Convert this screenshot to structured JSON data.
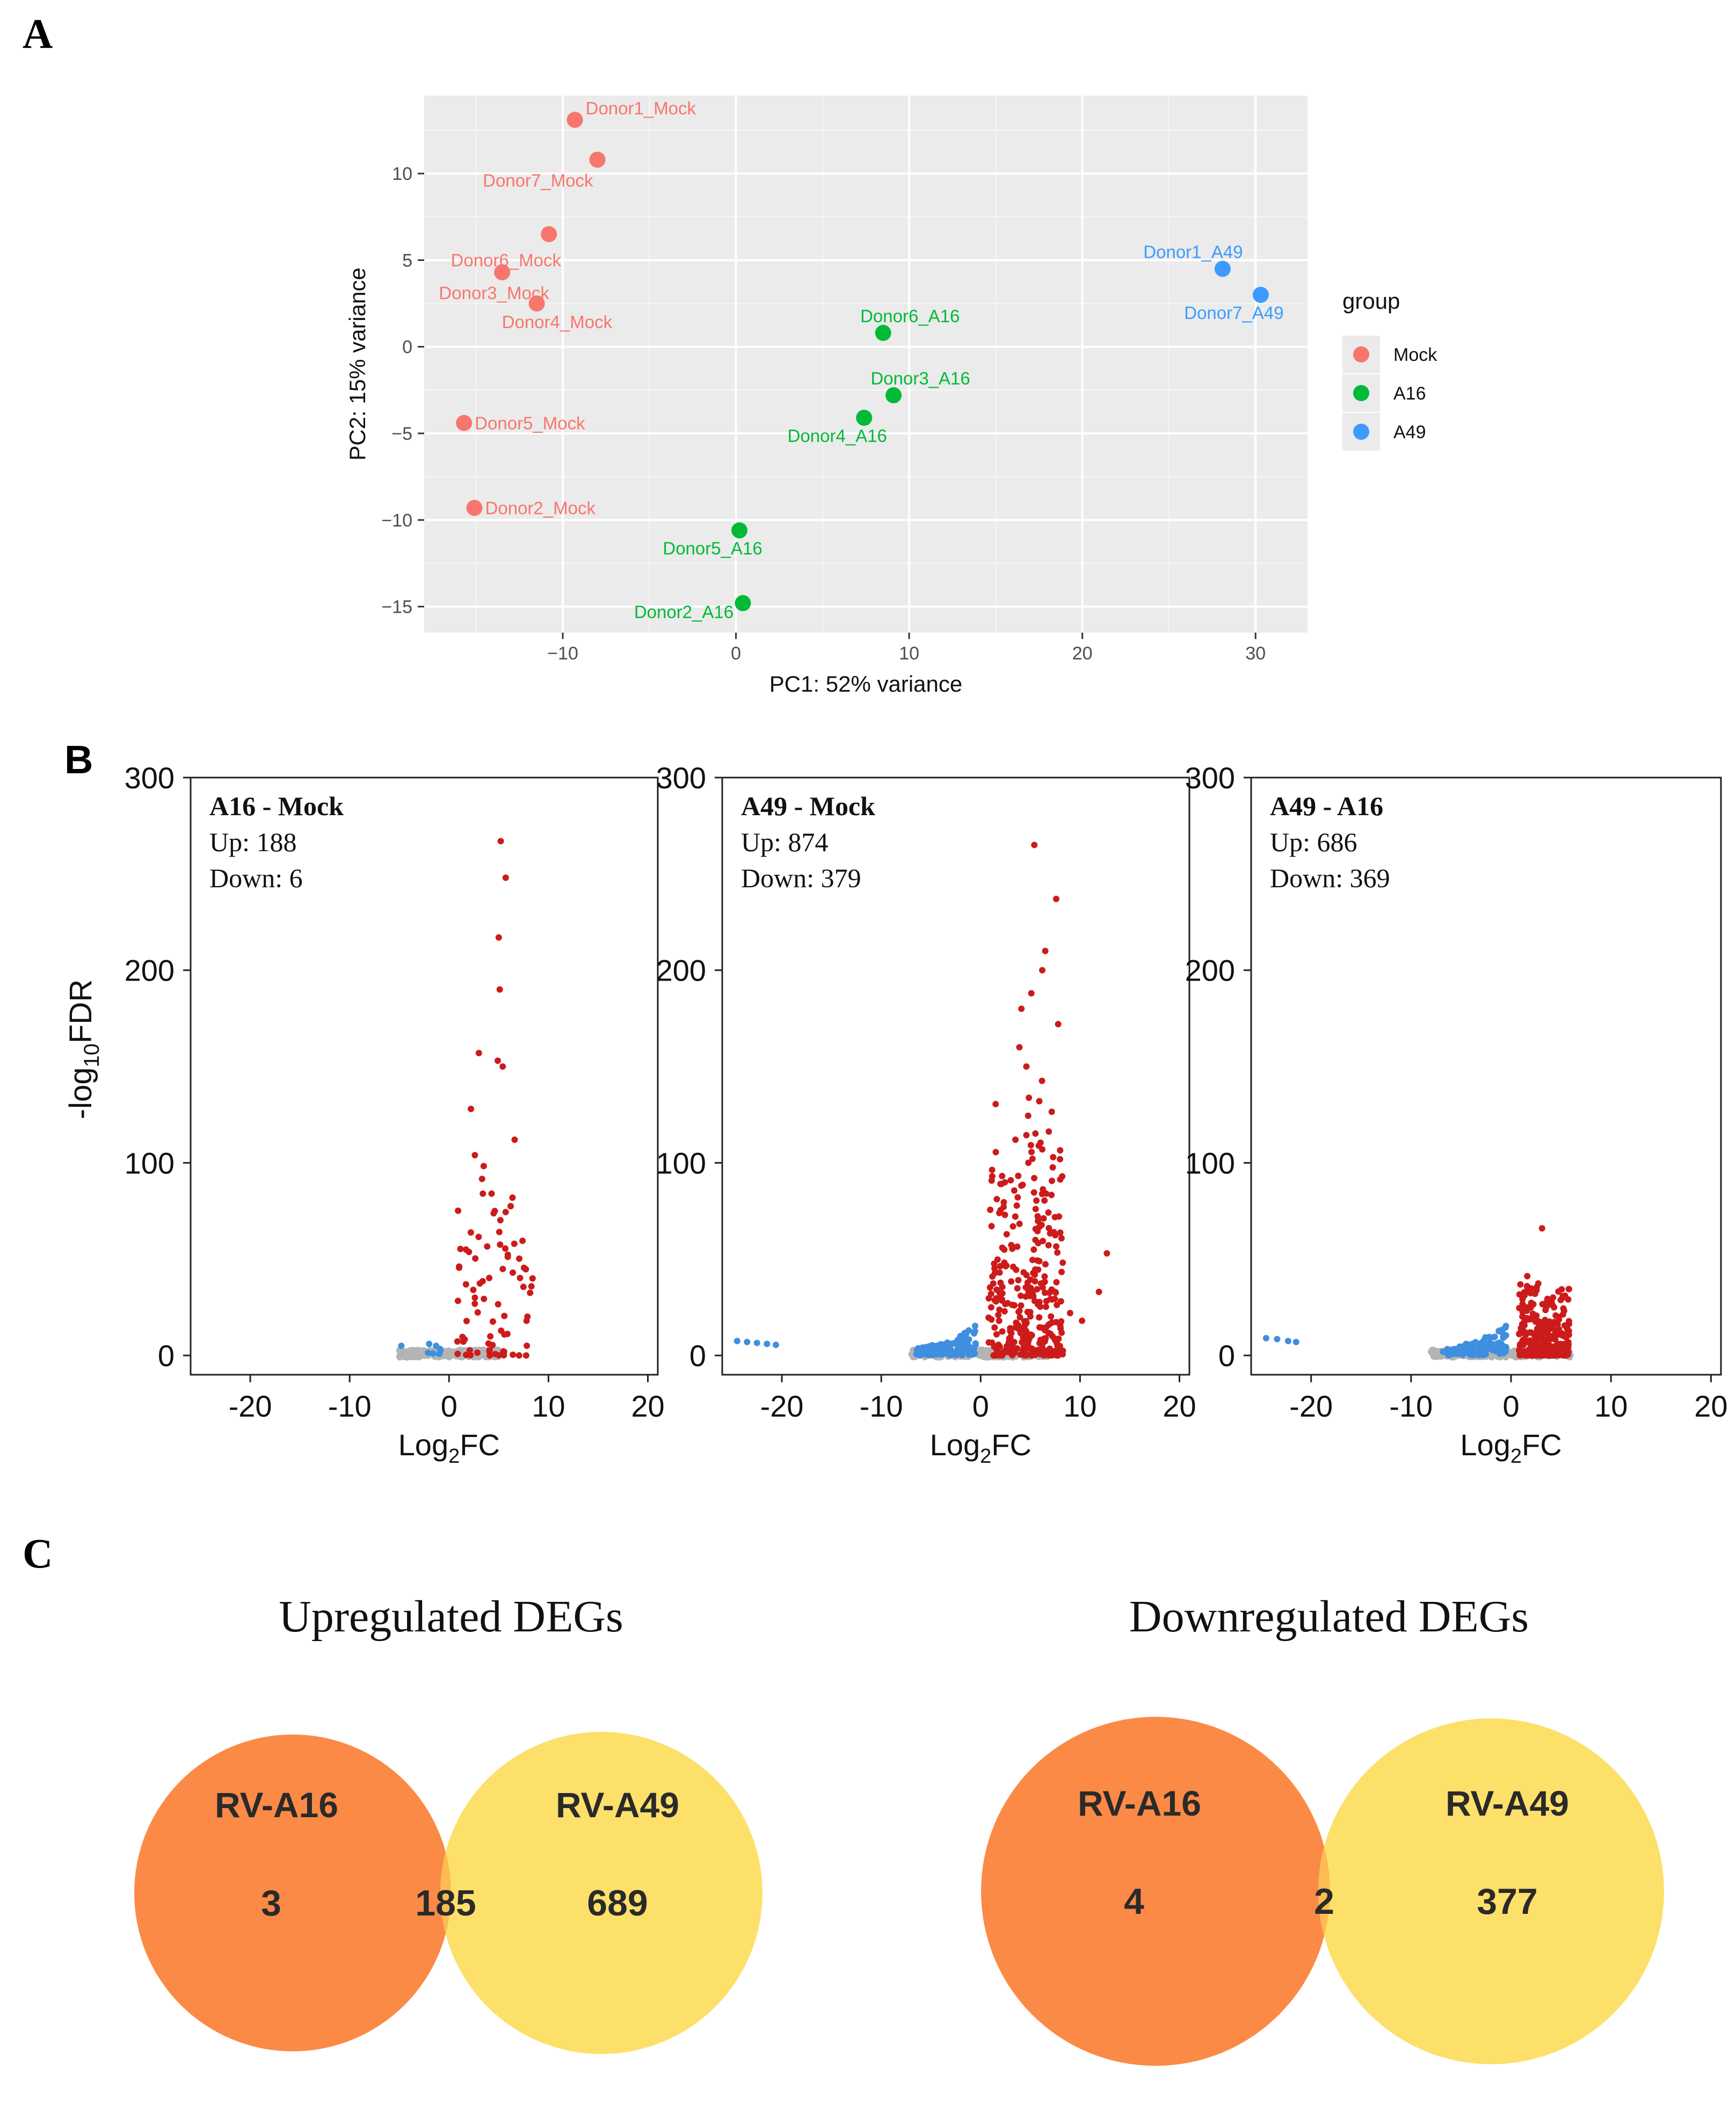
{
  "panels": {
    "a": "A",
    "b": "B",
    "c": "C"
  },
  "chart_data": [
    {
      "type": "scatter",
      "panel": "A",
      "xlabel": "PC1: 52% variance",
      "ylabel": "PC2: 15% variance",
      "xlim": [
        -18,
        33
      ],
      "ylim": [
        -16.5,
        14.5
      ],
      "xticks": [
        -10,
        0,
        10,
        20,
        30
      ],
      "xtick_labels": [
        "−10",
        "0",
        "10",
        "20",
        "30"
      ],
      "yticks": [
        10,
        5,
        0,
        -5,
        -10,
        -15
      ],
      "ytick_labels": [
        "10",
        "5",
        "0",
        "−5",
        "−10",
        "−15"
      ],
      "background": "#ebebeb",
      "legend": {
        "title": "group",
        "position": "right",
        "items": [
          {
            "label": "Mock",
            "color": "#f8766d"
          },
          {
            "label": "A16",
            "color": "#00ba38"
          },
          {
            "label": "A49",
            "color": "#3d9bff"
          }
        ]
      },
      "points": [
        {
          "label": "Donor1_Mock",
          "group": "Mock",
          "x": -9.3,
          "y": 13.1
        },
        {
          "label": "Donor7_Mock",
          "group": "Mock",
          "x": -8.0,
          "y": 10.8
        },
        {
          "label": "Donor6_Mock",
          "group": "Mock",
          "x": -10.8,
          "y": 6.5
        },
        {
          "label": "Donor3_Mock",
          "group": "Mock",
          "x": -13.5,
          "y": 4.3
        },
        {
          "label": "Donor4_Mock",
          "group": "Mock",
          "x": -11.5,
          "y": 2.5
        },
        {
          "label": "Donor5_Mock",
          "group": "Mock",
          "x": -15.7,
          "y": -4.4
        },
        {
          "label": "Donor2_Mock",
          "group": "Mock",
          "x": -15.1,
          "y": -9.3
        },
        {
          "label": "Donor6_A16",
          "group": "A16",
          "x": 8.5,
          "y": 0.8
        },
        {
          "label": "Donor3_A16",
          "group": "A16",
          "x": 9.1,
          "y": -2.8
        },
        {
          "label": "Donor4_A16",
          "group": "A16",
          "x": 7.4,
          "y": -4.1
        },
        {
          "label": "Donor5_A16",
          "group": "A16",
          "x": 0.2,
          "y": -10.6
        },
        {
          "label": "Donor2_A16",
          "group": "A16",
          "x": 0.4,
          "y": -14.8
        },
        {
          "label": "Donor1_A49",
          "group": "A49",
          "x": 28.1,
          "y": 4.5
        },
        {
          "label": "Donor7_A49",
          "group": "A49",
          "x": 30.3,
          "y": 3.0
        }
      ]
    },
    {
      "type": "scatter",
      "panel": "B",
      "subtype": "volcano",
      "ylabel": "-log10FDR",
      "xlabel": "Log2FC",
      "xlim": [
        -26,
        21
      ],
      "ylim": [
        -10,
        300
      ],
      "xticks": [
        -20,
        -10,
        0,
        10,
        20
      ],
      "yticks": [
        0,
        100,
        200,
        300
      ],
      "colors": {
        "up": "#cc1b1b",
        "down": "#3f8fe0",
        "ns": "#b4b4b4"
      },
      "panels": [
        {
          "title": "A16 - Mock",
          "up_label": "Up: 188",
          "down_label": "Down: 6",
          "up": 188,
          "down": 6,
          "highlight_up": [
            [
              5.2,
              267
            ],
            [
              5.7,
              248
            ],
            [
              5.0,
              217
            ],
            [
              5.1,
              190
            ],
            [
              3.0,
              157
            ],
            [
              4.9,
              153
            ],
            [
              5.4,
              150
            ],
            [
              2.2,
              128
            ],
            [
              6.6,
              112
            ],
            [
              2.6,
              104
            ],
            [
              4.6,
              75
            ],
            [
              8.4,
              40
            ],
            [
              7.8,
              18
            ],
            [
              1.7,
              55
            ],
            [
              3.4,
              84
            ]
          ],
          "highlight_down": [
            [
              -4.8,
              5
            ],
            [
              -2.0,
              6
            ],
            [
              -1.3,
              5
            ]
          ]
        },
        {
          "title": "A49 - Mock",
          "up_label": "Up: 874",
          "down_label": "Down: 379",
          "up": 874,
          "down": 379,
          "highlight_up": [
            [
              5.4,
              265
            ],
            [
              7.6,
              237
            ],
            [
              6.5,
              210
            ],
            [
              6.2,
              200
            ],
            [
              5.1,
              188
            ],
            [
              7.8,
              172
            ],
            [
              4.1,
              180
            ],
            [
              3.9,
              160
            ],
            [
              4.6,
              150
            ],
            [
              5.9,
              132
            ],
            [
              3.5,
              112
            ],
            [
              12.7,
              53
            ],
            [
              11.9,
              33
            ],
            [
              10.2,
              18
            ],
            [
              9.0,
              22
            ],
            [
              4.8,
              100
            ],
            [
              6.6,
              84
            ]
          ],
          "highlight_down": [
            [
              -23.5,
              7
            ],
            [
              -22.5,
              6.5
            ],
            [
              -21.5,
              6
            ],
            [
              -20.6,
              5.5
            ],
            [
              -24.5,
              7.5
            ]
          ]
        },
        {
          "title": "A49 - A16",
          "up_label": "Up: 686",
          "down_label": "Down: 369",
          "up": 686,
          "down": 369,
          "highlight_up": [
            [
              3.1,
              66
            ],
            [
              5.4,
              31
            ],
            [
              4.3,
              25
            ],
            [
              1.6,
              36
            ],
            [
              2.4,
              32
            ]
          ],
          "highlight_down": [
            [
              -24.5,
              9
            ],
            [
              -23.4,
              8.5
            ],
            [
              -22.3,
              7.5
            ],
            [
              -21.5,
              7
            ],
            [
              -4.5,
              6
            ],
            [
              -6.8,
              2
            ]
          ]
        }
      ]
    },
    {
      "type": "venn",
      "panel": "C",
      "diagrams": [
        {
          "title": "Upregulated DEGs",
          "left_label": "RV-A16",
          "right_label": "RV-A49",
          "left_only": "3",
          "both": "185",
          "right_only": "689"
        },
        {
          "title": "Downregulated DEGs",
          "left_label": "RV-A16",
          "right_label": "RV-A49",
          "left_only": "4",
          "both": "2",
          "right_only": "377"
        }
      ],
      "colors": {
        "left": "#fb8a46",
        "right": "#fde06a",
        "overlap": "#fcbc52",
        "text": "#2a2a2a"
      }
    }
  ]
}
